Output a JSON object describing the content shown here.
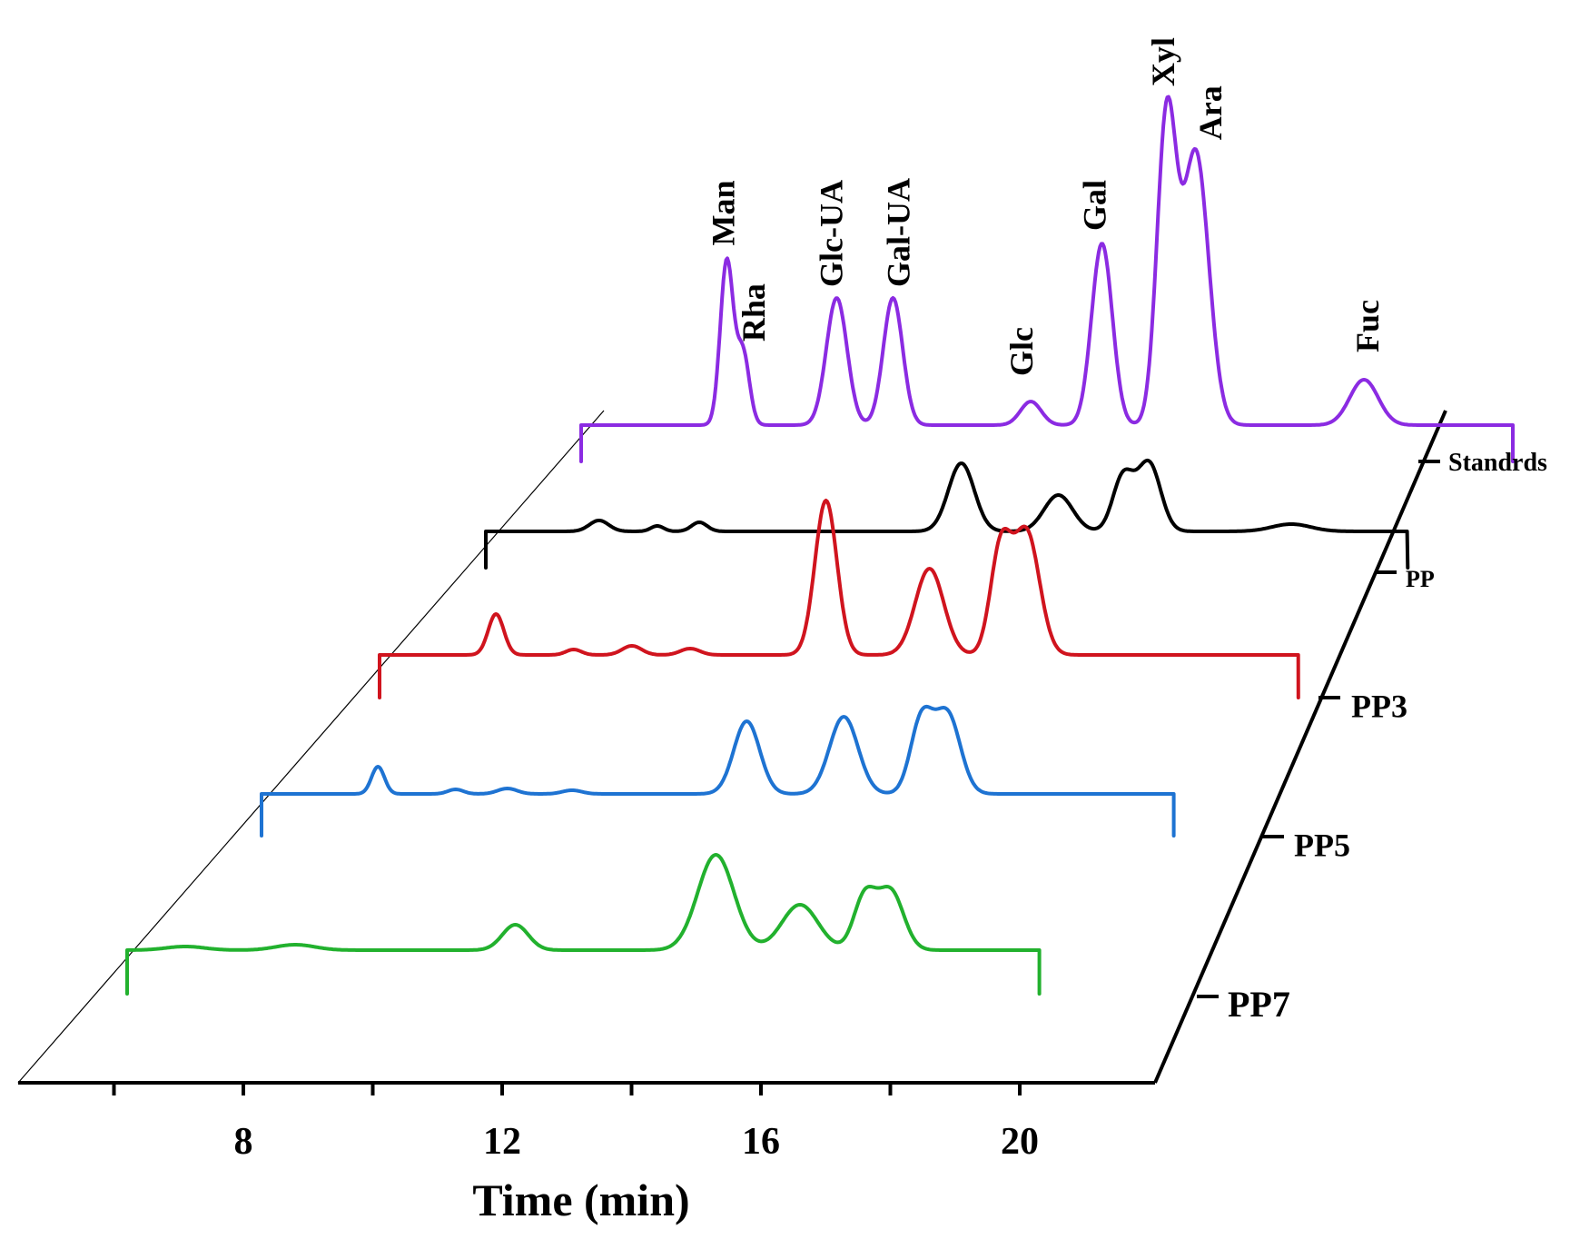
{
  "chart_data": {
    "type": "line",
    "style": "waterfall-3d",
    "title": "",
    "xlabel": "Time (min)",
    "ylabel": "",
    "x_ticks": [
      8,
      12,
      16,
      20
    ],
    "x_minor_ticks": [
      6,
      10,
      14,
      18,
      22
    ],
    "xlim": [
      4.5,
      22
    ],
    "series": [
      {
        "name": "Standrds",
        "label": "Standrds",
        "color": "#8B2BE2",
        "start": 6.6,
        "end": 21.0,
        "peaks": [
          {
            "t": 8.85,
            "h": 180,
            "w": 0.1
          },
          {
            "t": 9.1,
            "h": 80,
            "w": 0.1
          },
          {
            "t": 10.55,
            "h": 140,
            "w": 0.16
          },
          {
            "t": 11.42,
            "h": 140,
            "w": 0.15
          },
          {
            "t": 13.55,
            "h": 26,
            "w": 0.16
          },
          {
            "t": 14.65,
            "h": 200,
            "w": 0.16
          },
          {
            "t": 15.65,
            "h": 335,
            "w": 0.15
          },
          {
            "t": 16.1,
            "h": 300,
            "w": 0.2
          },
          {
            "t": 18.7,
            "h": 50,
            "w": 0.22
          }
        ]
      },
      {
        "name": "PP",
        "label": "PP",
        "color": "#000000",
        "start": 7.35,
        "end": 21.6,
        "peaks": [
          {
            "t": 9.1,
            "h": 12,
            "w": 0.15
          },
          {
            "t": 10.0,
            "h": 6,
            "w": 0.1
          },
          {
            "t": 10.65,
            "h": 10,
            "w": 0.12
          },
          {
            "t": 14.7,
            "h": 75,
            "w": 0.2
          },
          {
            "t": 16.2,
            "h": 40,
            "w": 0.22
          },
          {
            "t": 17.2,
            "h": 60,
            "w": 0.16
          },
          {
            "t": 17.6,
            "h": 75,
            "w": 0.18
          },
          {
            "t": 19.8,
            "h": 8,
            "w": 0.3
          }
        ]
      },
      {
        "name": "PP3",
        "label": "PP3",
        "color": "#D0141E",
        "start": 8.1,
        "end": 22.3,
        "peaks": [
          {
            "t": 9.9,
            "h": 45,
            "w": 0.12
          },
          {
            "t": 11.1,
            "h": 6,
            "w": 0.12
          },
          {
            "t": 12.0,
            "h": 10,
            "w": 0.15
          },
          {
            "t": 12.9,
            "h": 7,
            "w": 0.15
          },
          {
            "t": 15.0,
            "h": 170,
            "w": 0.17
          },
          {
            "t": 16.6,
            "h": 95,
            "w": 0.22
          },
          {
            "t": 17.7,
            "h": 115,
            "w": 0.16
          },
          {
            "t": 18.1,
            "h": 135,
            "w": 0.2
          }
        ]
      },
      {
        "name": "PP5",
        "label": "PP5",
        "color": "#1E73D2",
        "start": 8.9,
        "end": 23.0,
        "peaks": [
          {
            "t": 10.7,
            "h": 30,
            "w": 0.1
          },
          {
            "t": 11.9,
            "h": 5,
            "w": 0.12
          },
          {
            "t": 12.7,
            "h": 6,
            "w": 0.15
          },
          {
            "t": 13.7,
            "h": 4,
            "w": 0.15
          },
          {
            "t": 16.4,
            "h": 80,
            "w": 0.2
          },
          {
            "t": 17.9,
            "h": 85,
            "w": 0.22
          },
          {
            "t": 19.1,
            "h": 80,
            "w": 0.17
          },
          {
            "t": 19.5,
            "h": 88,
            "w": 0.2
          }
        ]
      },
      {
        "name": "PP7",
        "label": "PP7",
        "color": "#22B12E",
        "start": 9.8,
        "end": 23.9,
        "peaks": [
          {
            "t": 10.7,
            "h": 4,
            "w": 0.3
          },
          {
            "t": 12.4,
            "h": 6,
            "w": 0.3
          },
          {
            "t": 15.8,
            "h": 28,
            "w": 0.2
          },
          {
            "t": 18.9,
            "h": 105,
            "w": 0.28
          },
          {
            "t": 20.2,
            "h": 50,
            "w": 0.28
          },
          {
            "t": 21.2,
            "h": 58,
            "w": 0.17
          },
          {
            "t": 21.6,
            "h": 65,
            "w": 0.2
          }
        ]
      }
    ],
    "peak_annotations": [
      {
        "text": "Man",
        "t": 8.85
      },
      {
        "text": "Rha",
        "t": 9.1
      },
      {
        "text": "Glc-UA",
        "t": 10.55
      },
      {
        "text": "Gal-UA",
        "t": 11.42
      },
      {
        "text": "Glc",
        "t": 13.55
      },
      {
        "text": "Gal",
        "t": 14.65
      },
      {
        "text": "Xyl",
        "t": 15.65
      },
      {
        "text": "Ara",
        "t": 16.1
      },
      {
        "text": "Fuc",
        "t": 18.7
      }
    ]
  }
}
